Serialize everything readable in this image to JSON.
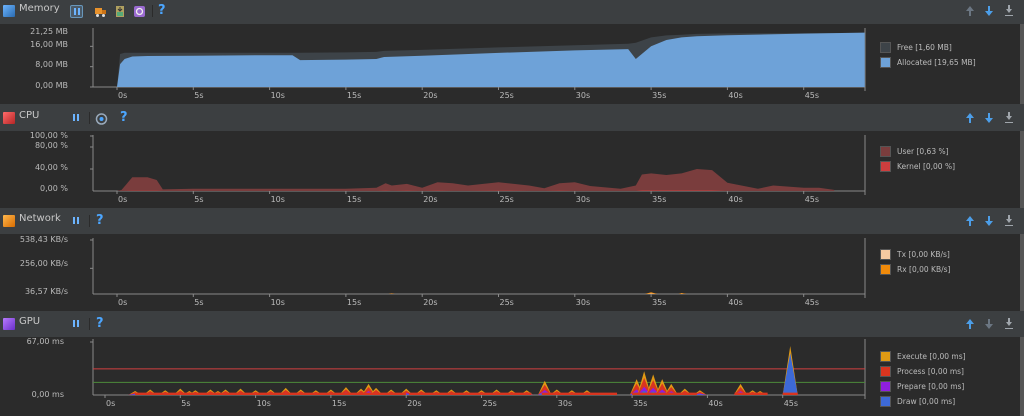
{
  "colors": {
    "bg": "#3c3f41",
    "plot_bg": "#2b2b2b",
    "memory_free": "#3d4348",
    "memory_allocated": "#6ea2d8",
    "cpu_user": "#7a3d3d",
    "cpu_kernel": "#cc3e3e",
    "net_tx": "#f5c9a1",
    "net_rx": "#f08a0a",
    "gpu_execute": "#e09a14",
    "gpu_process": "#d9351f",
    "gpu_prepare": "#8f1ee0",
    "gpu_draw": "#3d69d6",
    "threshold_red": "#d24040",
    "threshold_green": "#4c8a3a"
  },
  "time_ticks": [
    "0s",
    "5s",
    "10s",
    "15s",
    "20s",
    "25s",
    "30s",
    "35s",
    "40s",
    "45s"
  ],
  "memory": {
    "title": "Memory",
    "icon": "memory-monitor-icon",
    "buttons": [
      "pause-icon",
      "gc-truck-icon",
      "heap-dump-icon",
      "allocation-tracker-icon",
      "help-icon"
    ],
    "y_labels": [
      "21,25 MB",
      "16,00 MB",
      "8,00 MB",
      "0,00 MB"
    ],
    "legend": [
      {
        "label": "Free [1,60 MB]"
      },
      {
        "label": "Allocated [19,65 MB]"
      }
    ],
    "chart_data": {
      "type": "area",
      "x": [
        0,
        0.2,
        0.5,
        1,
        2,
        5,
        10,
        11.5,
        12,
        15,
        17,
        17.5,
        20,
        25,
        30,
        33.5,
        34,
        35,
        36,
        37,
        38,
        40,
        45,
        49
      ],
      "allocated": [
        0,
        9,
        11,
        12,
        12.2,
        12.3,
        12.5,
        12.5,
        10.6,
        10.8,
        11,
        11.8,
        12.3,
        13.4,
        14.4,
        14.9,
        11,
        16,
        18.5,
        19.5,
        20,
        20.4,
        21,
        21.4
      ],
      "total": [
        0,
        13,
        13.5,
        13.5,
        13.5,
        13.5,
        13.5,
        13.5,
        13.5,
        13.6,
        13.8,
        14.2,
        14.6,
        15.6,
        16.4,
        17,
        17.4,
        19.5,
        20.3,
        20.6,
        20.9,
        21.1,
        21.2,
        21.3
      ],
      "ylim": [
        0,
        21.25
      ],
      "xlim": [
        0,
        49
      ]
    }
  },
  "cpu": {
    "title": "CPU",
    "icon": "cpu-monitor-icon",
    "buttons": [
      "pause-icon",
      "method-trace-icon",
      "help-icon"
    ],
    "y_labels": [
      "100,00 %",
      "80,00 %",
      "40,00 %",
      "0,00 %"
    ],
    "legend": [
      {
        "label": "User [0,63 %]"
      },
      {
        "label": "Kernel [0,00 %]"
      }
    ],
    "chart_data": {
      "type": "area",
      "x": [
        0,
        0.3,
        1,
        2,
        2.6,
        3,
        5,
        10,
        15,
        17,
        17.6,
        18,
        19,
        20,
        21,
        22,
        23,
        25,
        27,
        28,
        29,
        30,
        31,
        33,
        34,
        34.4,
        35,
        36,
        37,
        38,
        39,
        40,
        42,
        43,
        45,
        46,
        47
      ],
      "user": [
        0,
        2,
        25,
        25,
        20,
        3,
        4,
        4,
        4,
        6,
        14,
        10,
        13,
        6,
        16,
        14,
        10,
        16,
        10,
        5,
        14,
        16,
        9,
        4,
        10,
        30,
        32,
        29,
        32,
        40,
        38,
        15,
        4,
        10,
        6,
        6,
        2
      ],
      "kernel": [
        0,
        0,
        0.5,
        0.5,
        0.5,
        0,
        0,
        0,
        0,
        0,
        0.5,
        0,
        0.5,
        0,
        0.5,
        0,
        0,
        0.5,
        0,
        0,
        0.5,
        0,
        0,
        0,
        0,
        1,
        1,
        1,
        1,
        1,
        1,
        0,
        0,
        0,
        0,
        0,
        0
      ],
      "ylim": [
        0,
        100
      ],
      "xlim": [
        0,
        49
      ]
    }
  },
  "network": {
    "title": "Network",
    "icon": "network-monitor-icon",
    "buttons": [
      "pause-icon",
      "help-icon"
    ],
    "y_labels": [
      "538,43 KB/s",
      "256,00 KB/s",
      "36,57 KB/s"
    ],
    "legend": [
      {
        "label": "Tx [0,00 KB/s]"
      },
      {
        "label": "Rx [0,00 KB/s]"
      }
    ],
    "chart_data": {
      "type": "area",
      "x": [
        0,
        17.8,
        18,
        18.2,
        34.6,
        35,
        35.4,
        36.8,
        37,
        37.3,
        49
      ],
      "rx": [
        0,
        0,
        6,
        0,
        0,
        18,
        0,
        0,
        10,
        0,
        0
      ],
      "tx": [
        0,
        0,
        2,
        0,
        0,
        5,
        0,
        0,
        3,
        0,
        0
      ],
      "ylim": [
        0,
        538.43
      ],
      "xlim": [
        0,
        49
      ]
    }
  },
  "gpu": {
    "title": "GPU",
    "icon": "gpu-monitor-icon",
    "buttons": [
      "pause-icon",
      "help-icon"
    ],
    "y_labels": [
      "67,00 ms",
      "0,00 ms"
    ],
    "legend": [
      {
        "label": "Execute [0,00 ms]"
      },
      {
        "label": "Process [0,00 ms]"
      },
      {
        "label": "Prepare [0,00 ms]"
      },
      {
        "label": "Draw [0,00 ms]"
      }
    ],
    "chart_data": {
      "type": "area",
      "ylim": [
        0,
        67
      ],
      "xlim": [
        0,
        51
      ],
      "thresholds": [
        33,
        16
      ],
      "spikes": [
        [
          2,
          5
        ],
        [
          3,
          7
        ],
        [
          4,
          6
        ],
        [
          5,
          8
        ],
        [
          5.6,
          5
        ],
        [
          6,
          6
        ],
        [
          7,
          7
        ],
        [
          7.5,
          5
        ],
        [
          8,
          7
        ],
        [
          9,
          8
        ],
        [
          10,
          6
        ],
        [
          11,
          7
        ],
        [
          12,
          9
        ],
        [
          13,
          7
        ],
        [
          14,
          6
        ],
        [
          15,
          7
        ],
        [
          16,
          10
        ],
        [
          17,
          8
        ],
        [
          17.5,
          14
        ],
        [
          18,
          9
        ],
        [
          19,
          7
        ],
        [
          20,
          8
        ],
        [
          21,
          7
        ],
        [
          22,
          6
        ],
        [
          23,
          7
        ],
        [
          24,
          6
        ],
        [
          25,
          6
        ],
        [
          26,
          7
        ],
        [
          27,
          6
        ],
        [
          28,
          6
        ],
        [
          29.2,
          18
        ],
        [
          30,
          7
        ],
        [
          31,
          6
        ],
        [
          32,
          6
        ],
        [
          35.3,
          20
        ],
        [
          35.8,
          30
        ],
        [
          36.4,
          26
        ],
        [
          37,
          20
        ],
        [
          37.6,
          14
        ],
        [
          38.5,
          8
        ],
        [
          39.5,
          6
        ],
        [
          42.2,
          14
        ],
        [
          43,
          6
        ],
        [
          43.5,
          5
        ],
        [
          45.5,
          62
        ]
      ]
    }
  }
}
